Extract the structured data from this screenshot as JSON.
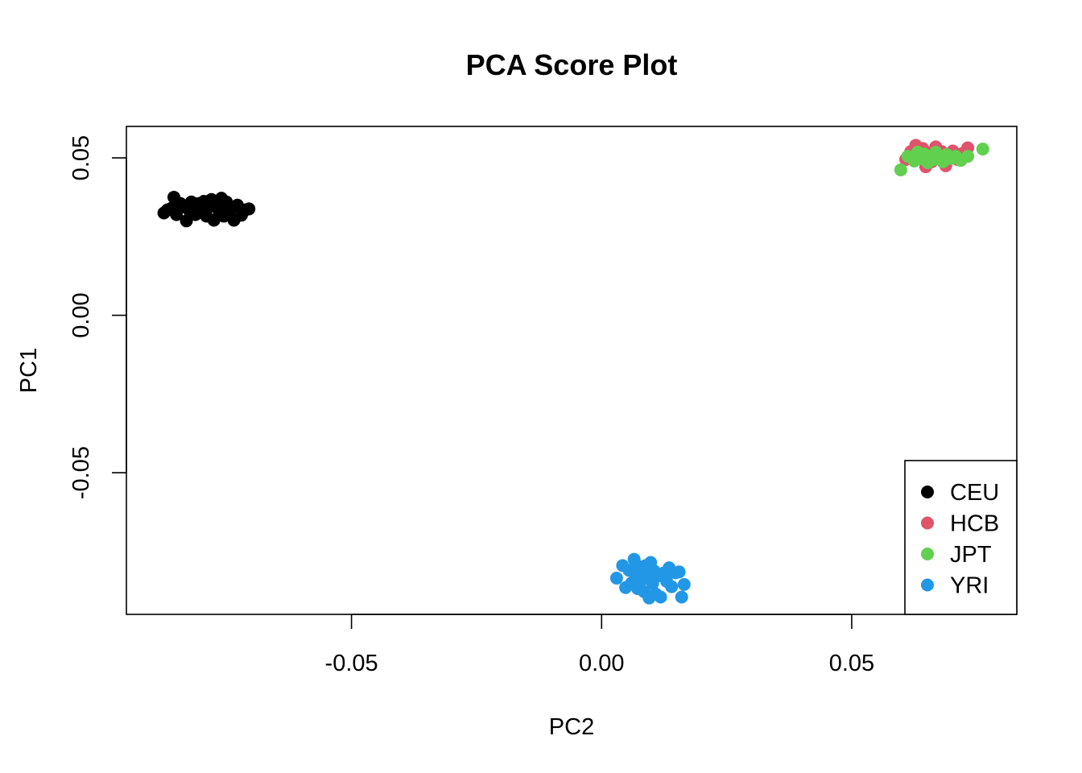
{
  "chart_data": {
    "type": "scatter",
    "title": "PCA Score Plot",
    "xlabel": "PC2",
    "ylabel": "PC1",
    "xlim": [
      -0.095,
      0.083
    ],
    "ylim": [
      -0.095,
      0.06
    ],
    "xticks": [
      {
        "value": -0.05,
        "label": "-0.05"
      },
      {
        "value": 0.0,
        "label": "0.00"
      },
      {
        "value": 0.05,
        "label": "0.05"
      }
    ],
    "yticks": [
      {
        "value": -0.05,
        "label": "-0.05"
      },
      {
        "value": 0.0,
        "label": "0.00"
      },
      {
        "value": 0.05,
        "label": "0.05"
      }
    ],
    "legend_position": "bottom-right",
    "series": [
      {
        "name": "CEU",
        "color": "#000000",
        "x": [
          -0.0875,
          -0.0868,
          -0.086,
          -0.0855,
          -0.085,
          -0.0842,
          -0.0835,
          -0.083,
          -0.0825,
          -0.082,
          -0.0812,
          -0.0805,
          -0.08,
          -0.0795,
          -0.079,
          -0.0785,
          -0.078,
          -0.0775,
          -0.077,
          -0.0765,
          -0.076,
          -0.0755,
          -0.075,
          -0.0745,
          -0.074,
          -0.0735,
          -0.0728,
          -0.072,
          -0.0712,
          -0.0705
        ],
        "y": [
          0.0325,
          0.0335,
          0.034,
          0.0375,
          0.032,
          0.0355,
          0.0345,
          0.03,
          0.0335,
          0.036,
          0.032,
          0.0355,
          0.0338,
          0.0362,
          0.0315,
          0.0345,
          0.0368,
          0.0302,
          0.0355,
          0.0332,
          0.0372,
          0.0315,
          0.036,
          0.0325,
          0.0342,
          0.0302,
          0.035,
          0.0318,
          0.0335,
          0.0338
        ]
      },
      {
        "name": "HCB",
        "color": "#DF536B",
        "x": [
          0.0608,
          0.0618,
          0.0628,
          0.0635,
          0.0642,
          0.0648,
          0.0655,
          0.066,
          0.0668,
          0.0672,
          0.068,
          0.0688,
          0.0695,
          0.0702,
          0.0712,
          0.0722,
          0.0732
        ],
        "y": [
          0.0495,
          0.052,
          0.054,
          0.0505,
          0.053,
          0.0472,
          0.0515,
          0.0488,
          0.0535,
          0.0502,
          0.052,
          0.0475,
          0.0508,
          0.0522,
          0.0495,
          0.0515,
          0.0532
        ]
      },
      {
        "name": "JPT",
        "color": "#61D04F",
        "x": [
          0.0598,
          0.0612,
          0.0625,
          0.0632,
          0.064,
          0.0645,
          0.0652,
          0.0658,
          0.0663,
          0.0668,
          0.0675,
          0.0682,
          0.069,
          0.0698,
          0.0708,
          0.0718,
          0.0732,
          0.0762
        ],
        "y": [
          0.0462,
          0.0505,
          0.049,
          0.0518,
          0.0498,
          0.0512,
          0.0485,
          0.0505,
          0.0495,
          0.0518,
          0.0502,
          0.0488,
          0.051,
          0.0498,
          0.0505,
          0.0492,
          0.0505,
          0.0528
        ]
      },
      {
        "name": "YRI",
        "color": "#2297E6",
        "x": [
          0.003,
          0.0042,
          0.0048,
          0.0055,
          0.006,
          0.0065,
          0.0068,
          0.0072,
          0.0075,
          0.0078,
          0.0082,
          0.0085,
          0.0088,
          0.0092,
          0.0095,
          0.0098,
          0.0102,
          0.0105,
          0.0108,
          0.0112,
          0.0118,
          0.0125,
          0.013,
          0.0135,
          0.014,
          0.0148,
          0.0155,
          0.016,
          0.0165
        ],
        "y": [
          -0.0835,
          -0.0795,
          -0.0865,
          -0.081,
          -0.085,
          -0.0775,
          -0.0825,
          -0.0868,
          -0.0798,
          -0.0845,
          -0.0815,
          -0.0878,
          -0.0795,
          -0.0832,
          -0.0898,
          -0.0785,
          -0.0852,
          -0.0812,
          -0.0885,
          -0.0828,
          -0.0895,
          -0.0818,
          -0.0845,
          -0.0802,
          -0.0862,
          -0.0818,
          -0.0815,
          -0.0895,
          -0.0855
        ]
      }
    ]
  }
}
